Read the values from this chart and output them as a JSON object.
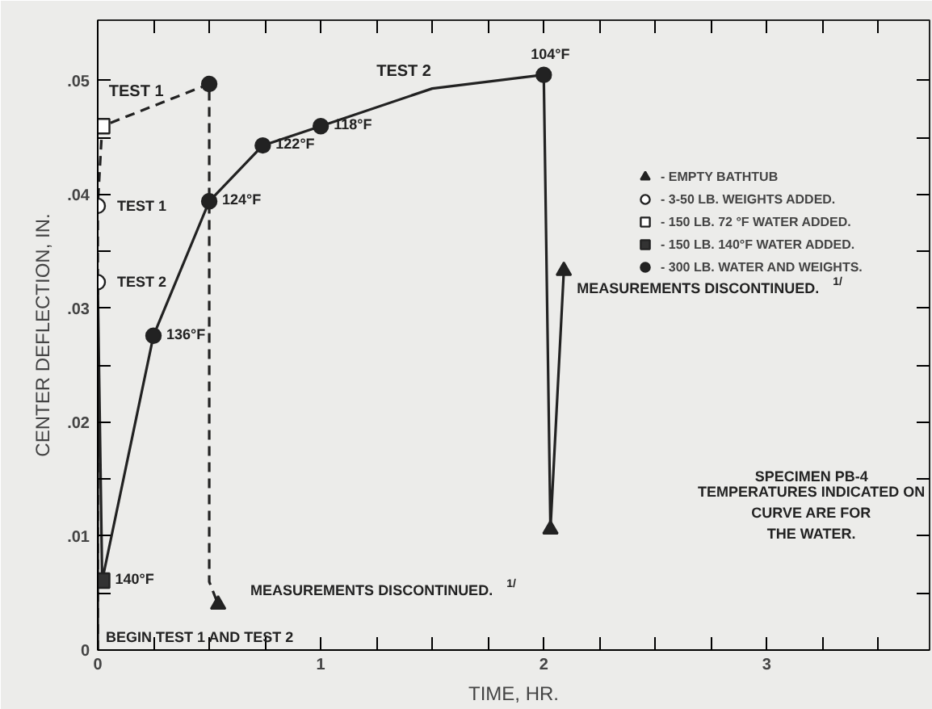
{
  "chart_data": {
    "type": "line",
    "xlabel": "TIME, HR.",
    "ylabel": "CENTER DEFLECTION, IN.",
    "xlim": [
      0,
      3.73
    ],
    "ylim": [
      0,
      0.0553
    ],
    "xticks": [
      0,
      {
        "value": 0.25,
        "label": null
      },
      {
        "value": 0.5,
        "label": null
      },
      {
        "value": 0.75,
        "label": null
      },
      1,
      {
        "value": 1.25,
        "label": null
      },
      {
        "value": 1.5,
        "label": null
      },
      {
        "value": 1.75,
        "label": null
      },
      2,
      {
        "value": 2.25,
        "label": null
      },
      {
        "value": 2.5,
        "label": null
      },
      {
        "value": 2.75,
        "label": null
      },
      3,
      {
        "value": 3.25,
        "label": null
      },
      {
        "value": 3.5,
        "label": null
      }
    ],
    "yticks": [
      0,
      {
        "value": 0.005,
        "label": null
      },
      {
        "value": 0.01,
        "label": ".01"
      },
      {
        "value": 0.015,
        "label": null
      },
      {
        "value": 0.02,
        "label": ".02"
      },
      {
        "value": 0.025,
        "label": null
      },
      {
        "value": 0.03,
        "label": ".03"
      },
      {
        "value": 0.035,
        "label": null
      },
      {
        "value": 0.04,
        "label": ".04"
      },
      {
        "value": 0.045,
        "label": null
      },
      {
        "value": 0.05,
        "label": ".05"
      }
    ],
    "grid": false,
    "legend": "right",
    "series": [
      {
        "name": "TEST 1",
        "line_style": "dashed",
        "marker": "none",
        "color": "#222222",
        "x": [
          0,
          0,
          0.02,
          0.5,
          0.5,
          0.54
        ],
        "values": [
          0,
          0.039,
          0.046,
          0.0497,
          0.006,
          0.004
        ]
      },
      {
        "name": "TEST 2",
        "line_style": "solid",
        "marker": "none",
        "color": "#222222",
        "x": [
          0,
          0,
          0.02,
          0.25,
          0.5,
          0.74,
          1.0,
          1.5,
          2.0,
          2.03,
          2.09
        ],
        "values": [
          0,
          0.0323,
          0.0061,
          0.0276,
          0.0394,
          0.0443,
          0.046,
          0.0493,
          0.0505,
          0.0106,
          0.0333
        ]
      },
      {
        "name": "- EMPTY BATHTUB",
        "type": "scatter",
        "marker": "triangle",
        "color": "#222222",
        "x": [
          0.54,
          2.03,
          2.09
        ],
        "values": [
          0.004,
          0.0106,
          0.0333
        ]
      },
      {
        "name": "- 3-50 LB. WEIGHTS ADDED.",
        "type": "scatter",
        "marker": "circle",
        "color": "#ffffff",
        "x": [
          0,
          0
        ],
        "values": [
          0.039,
          0.0323
        ]
      },
      {
        "name": "- 150 LB. 72 °F WATER ADDED.",
        "type": "scatter",
        "marker": "square",
        "color": "#ffffff",
        "x": [
          0.02
        ],
        "values": [
          0.046
        ]
      },
      {
        "name": "- 150 LB. 140°F WATER ADDED.",
        "type": "scatter",
        "marker": "square",
        "color": "#333333",
        "x": [
          0.02
        ],
        "values": [
          0.0061
        ]
      },
      {
        "name": "- 300 LB. WATER AND WEIGHTS.",
        "type": "scatter",
        "marker": "circle",
        "color": "#222222",
        "x": [
          0.5,
          0.25,
          0.5,
          0.74,
          1.0,
          2.0
        ],
        "values": [
          0.0497,
          0.0276,
          0.0394,
          0.0443,
          0.046,
          0.0505
        ]
      }
    ],
    "annotations": [
      {
        "text": "140°F",
        "x": 0.02,
        "y": 0.0061
      },
      {
        "text": "136°F",
        "x": 0.25,
        "y": 0.0276
      },
      {
        "text": "124°F",
        "x": 0.5,
        "y": 0.0394
      },
      {
        "text": "122°F",
        "x": 0.74,
        "y": 0.0443
      },
      {
        "text": "118°F",
        "x": 1.0,
        "y": 0.046
      },
      {
        "text": "104°F",
        "x": 2.0,
        "y": 0.0505
      },
      {
        "text": "TEST 1",
        "x": 0,
        "y": 0.039
      },
      {
        "text": "TEST 2",
        "x": 0,
        "y": 0.0323
      },
      {
        "text": "BEGIN TEST 1 AND TEST 2",
        "x": 0,
        "y": 0
      },
      {
        "text": "MEASUREMENTS DISCONTINUED.$^{1/}$",
        "x": 0.54,
        "y": 0.004
      },
      {
        "text": "MEASUREMENTS DISCONTINUED.$^{1/}$",
        "x": 2.09,
        "y": 0.0333
      },
      "SPECIMEN PB-4",
      "TEMPERATURES INDICATED ON CURVE ARE FOR THE WATER."
    ]
  }
}
